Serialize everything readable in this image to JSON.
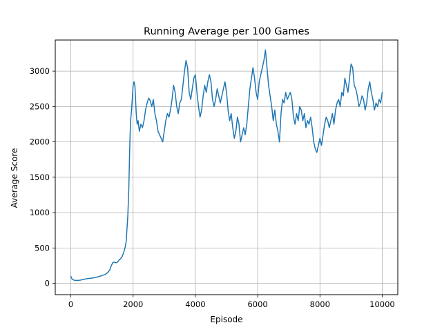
{
  "chart_data": {
    "type": "line",
    "title": "Running Average per 100 Games",
    "xlabel": "Episode",
    "ylabel": "Average Score",
    "xlim": [
      -500,
      10500
    ],
    "ylim": [
      -160,
      3440
    ],
    "xticks": [
      0,
      2000,
      4000,
      6000,
      8000,
      10000
    ],
    "yticks": [
      0,
      500,
      1000,
      1500,
      2000,
      2500,
      3000
    ],
    "grid": true,
    "legend": "none",
    "series": [
      {
        "color": "#1f77b4",
        "points": [
          [
            0,
            100
          ],
          [
            40,
            60
          ],
          [
            100,
            45
          ],
          [
            200,
            40
          ],
          [
            300,
            45
          ],
          [
            400,
            55
          ],
          [
            500,
            65
          ],
          [
            600,
            70
          ],
          [
            700,
            75
          ],
          [
            800,
            85
          ],
          [
            900,
            95
          ],
          [
            1000,
            110
          ],
          [
            1100,
            125
          ],
          [
            1150,
            140
          ],
          [
            1200,
            160
          ],
          [
            1250,
            190
          ],
          [
            1300,
            250
          ],
          [
            1350,
            295
          ],
          [
            1400,
            300
          ],
          [
            1450,
            290
          ],
          [
            1500,
            300
          ],
          [
            1550,
            330
          ],
          [
            1600,
            350
          ],
          [
            1650,
            380
          ],
          [
            1700,
            440
          ],
          [
            1750,
            520
          ],
          [
            1780,
            600
          ],
          [
            1800,
            750
          ],
          [
            1830,
            950
          ],
          [
            1860,
            1300
          ],
          [
            1880,
            1700
          ],
          [
            1900,
            2050
          ],
          [
            1920,
            2300
          ],
          [
            1950,
            2450
          ],
          [
            1980,
            2650
          ],
          [
            2000,
            2800
          ],
          [
            2030,
            2850
          ],
          [
            2060,
            2780
          ],
          [
            2080,
            2600
          ],
          [
            2100,
            2400
          ],
          [
            2130,
            2250
          ],
          [
            2160,
            2300
          ],
          [
            2200,
            2150
          ],
          [
            2250,
            2250
          ],
          [
            2300,
            2200
          ],
          [
            2350,
            2300
          ],
          [
            2400,
            2450
          ],
          [
            2450,
            2550
          ],
          [
            2500,
            2620
          ],
          [
            2550,
            2580
          ],
          [
            2600,
            2500
          ],
          [
            2650,
            2600
          ],
          [
            2700,
            2400
          ],
          [
            2750,
            2300
          ],
          [
            2800,
            2150
          ],
          [
            2850,
            2100
          ],
          [
            2900,
            2050
          ],
          [
            2950,
            2000
          ],
          [
            3000,
            2150
          ],
          [
            3050,
            2300
          ],
          [
            3100,
            2400
          ],
          [
            3150,
            2350
          ],
          [
            3200,
            2450
          ],
          [
            3250,
            2600
          ],
          [
            3300,
            2800
          ],
          [
            3350,
            2700
          ],
          [
            3400,
            2500
          ],
          [
            3450,
            2400
          ],
          [
            3500,
            2550
          ],
          [
            3550,
            2600
          ],
          [
            3600,
            2800
          ],
          [
            3650,
            3000
          ],
          [
            3700,
            3150
          ],
          [
            3750,
            3050
          ],
          [
            3800,
            2700
          ],
          [
            3850,
            2600
          ],
          [
            3900,
            2750
          ],
          [
            3950,
            2900
          ],
          [
            4000,
            2950
          ],
          [
            4050,
            2700
          ],
          [
            4100,
            2500
          ],
          [
            4150,
            2350
          ],
          [
            4200,
            2450
          ],
          [
            4250,
            2650
          ],
          [
            4300,
            2800
          ],
          [
            4350,
            2700
          ],
          [
            4400,
            2850
          ],
          [
            4450,
            2950
          ],
          [
            4500,
            2850
          ],
          [
            4550,
            2600
          ],
          [
            4600,
            2500
          ],
          [
            4650,
            2600
          ],
          [
            4700,
            2750
          ],
          [
            4800,
            2550
          ],
          [
            4900,
            2750
          ],
          [
            4950,
            2850
          ],
          [
            5000,
            2700
          ],
          [
            5050,
            2450
          ],
          [
            5100,
            2300
          ],
          [
            5150,
            2400
          ],
          [
            5200,
            2200
          ],
          [
            5250,
            2050
          ],
          [
            5300,
            2150
          ],
          [
            5350,
            2350
          ],
          [
            5400,
            2250
          ],
          [
            5450,
            2000
          ],
          [
            5500,
            2100
          ],
          [
            5550,
            2200
          ],
          [
            5600,
            2100
          ],
          [
            5650,
            2250
          ],
          [
            5700,
            2500
          ],
          [
            5750,
            2750
          ],
          [
            5800,
            2900
          ],
          [
            5850,
            3050
          ],
          [
            5900,
            2900
          ],
          [
            5950,
            2700
          ],
          [
            6000,
            2600
          ],
          [
            6050,
            2850
          ],
          [
            6100,
            2950
          ],
          [
            6150,
            3050
          ],
          [
            6200,
            3150
          ],
          [
            6250,
            3300
          ],
          [
            6300,
            3050
          ],
          [
            6350,
            2800
          ],
          [
            6400,
            2650
          ],
          [
            6450,
            2500
          ],
          [
            6500,
            2300
          ],
          [
            6550,
            2450
          ],
          [
            6600,
            2250
          ],
          [
            6650,
            2150
          ],
          [
            6700,
            2000
          ],
          [
            6750,
            2400
          ],
          [
            6800,
            2600
          ],
          [
            6850,
            2550
          ],
          [
            6900,
            2700
          ],
          [
            6950,
            2600
          ],
          [
            7000,
            2650
          ],
          [
            7050,
            2700
          ],
          [
            7100,
            2600
          ],
          [
            7150,
            2350
          ],
          [
            7200,
            2250
          ],
          [
            7250,
            2400
          ],
          [
            7300,
            2300
          ],
          [
            7350,
            2500
          ],
          [
            7400,
            2450
          ],
          [
            7450,
            2300
          ],
          [
            7500,
            2400
          ],
          [
            7550,
            2200
          ],
          [
            7600,
            2300
          ],
          [
            7650,
            2250
          ],
          [
            7700,
            2350
          ],
          [
            7750,
            2200
          ],
          [
            7800,
            2000
          ],
          [
            7850,
            1900
          ],
          [
            7900,
            1850
          ],
          [
            7950,
            1950
          ],
          [
            8000,
            2050
          ],
          [
            8050,
            1950
          ],
          [
            8100,
            2100
          ],
          [
            8150,
            2250
          ],
          [
            8200,
            2350
          ],
          [
            8250,
            2300
          ],
          [
            8300,
            2200
          ],
          [
            8350,
            2300
          ],
          [
            8400,
            2400
          ],
          [
            8450,
            2250
          ],
          [
            8500,
            2450
          ],
          [
            8550,
            2550
          ],
          [
            8600,
            2600
          ],
          [
            8650,
            2500
          ],
          [
            8700,
            2700
          ],
          [
            8750,
            2650
          ],
          [
            8800,
            2900
          ],
          [
            8850,
            2800
          ],
          [
            8900,
            2700
          ],
          [
            8950,
            2900
          ],
          [
            9000,
            3100
          ],
          [
            9050,
            3050
          ],
          [
            9100,
            2800
          ],
          [
            9150,
            2750
          ],
          [
            9200,
            2650
          ],
          [
            9250,
            2500
          ],
          [
            9300,
            2550
          ],
          [
            9350,
            2650
          ],
          [
            9400,
            2600
          ],
          [
            9450,
            2450
          ],
          [
            9500,
            2550
          ],
          [
            9550,
            2750
          ],
          [
            9600,
            2850
          ],
          [
            9650,
            2700
          ],
          [
            9700,
            2600
          ],
          [
            9750,
            2450
          ],
          [
            9800,
            2550
          ],
          [
            9850,
            2500
          ],
          [
            9900,
            2600
          ],
          [
            9950,
            2550
          ],
          [
            10000,
            2700
          ]
        ]
      }
    ]
  }
}
